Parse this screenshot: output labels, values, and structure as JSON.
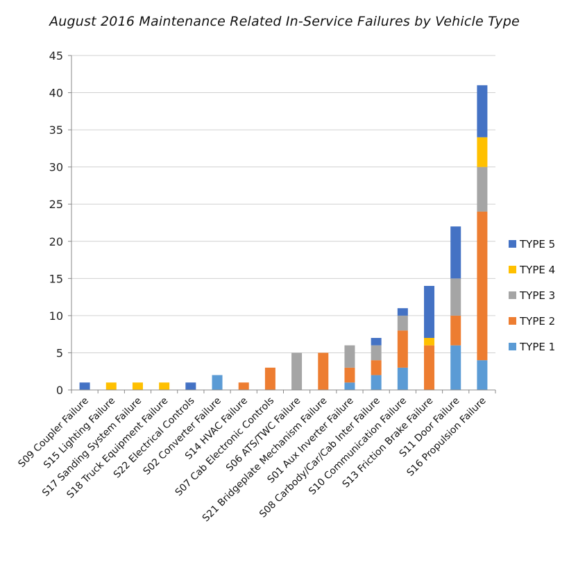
{
  "chart_data": {
    "type": "bar",
    "stacked": true,
    "title": "August 2016 Maintenance Related In-Service Failures by Vehicle Type",
    "xlabel": "",
    "ylabel": "",
    "ylim": [
      0,
      45
    ],
    "yticks": [
      0,
      5,
      10,
      15,
      20,
      25,
      30,
      35,
      40,
      45
    ],
    "grid": true,
    "legend_position": "right",
    "categories": [
      "S09 Coupler Failure",
      "S15 Lighting Failure",
      "S17 Sanding System Failure",
      "S18 Truck Equipment Failure",
      "S22 Electrical Controls",
      "S02 Converter Failure",
      "S14 HVAC Failure",
      "S07 Cab Electronic Controls",
      "S06 ATS/TWC Failure",
      "S21 Bridgeplate Mechanism Failure",
      "S01 Aux Inverter Failure",
      "S08 Carbody/Car/Cab Inter Failure",
      "S10 Communication Failure",
      "S13 Friction Brake Failure",
      "S11 Door Failure",
      "S16 Propulsion Failure"
    ],
    "series": [
      {
        "name": "TYPE 1",
        "color": "#5B9BD5",
        "values": [
          0,
          0,
          0,
          0,
          0,
          2,
          0,
          0,
          0,
          0,
          1,
          2,
          3,
          0,
          6,
          4
        ]
      },
      {
        "name": "TYPE 2",
        "color": "#ED7D31",
        "values": [
          0,
          0,
          0,
          0,
          0,
          0,
          1,
          3,
          0,
          5,
          2,
          2,
          5,
          6,
          4,
          20
        ]
      },
      {
        "name": "TYPE 3",
        "color": "#A5A5A5",
        "values": [
          0,
          0,
          0,
          0,
          0,
          0,
          0,
          0,
          5,
          0,
          3,
          2,
          2,
          0,
          5,
          6
        ]
      },
      {
        "name": "TYPE 4",
        "color": "#FFC000",
        "values": [
          0,
          1,
          1,
          1,
          0,
          0,
          0,
          0,
          0,
          0,
          0,
          0,
          0,
          1,
          0,
          4
        ]
      },
      {
        "name": "TYPE 5",
        "color": "#4472C4",
        "values": [
          1,
          0,
          0,
          0,
          1,
          0,
          0,
          0,
          0,
          0,
          0,
          1,
          1,
          7,
          7,
          7
        ]
      }
    ]
  }
}
